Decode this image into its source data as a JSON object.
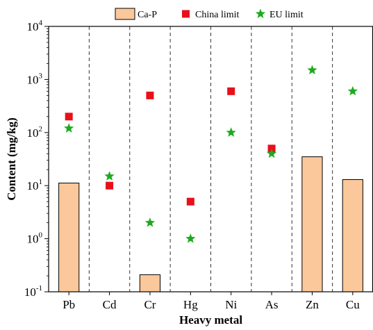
{
  "chart_data": {
    "type": "bar",
    "xlabel": "Heavy metal",
    "ylabel": "Content (mg/kg)",
    "yscale": "log",
    "ylim": [
      0.1,
      10000
    ],
    "grid": false,
    "legend_position": "top-center",
    "categories": [
      "Pb",
      "Cd",
      "Cr",
      "Hg",
      "Ni",
      "As",
      "Zn",
      "Cu"
    ],
    "y_ticks": [
      {
        "value": 0.1,
        "base": "10",
        "exp": "-1"
      },
      {
        "value": 1,
        "base": "10",
        "exp": "0"
      },
      {
        "value": 10,
        "base": "10",
        "exp": "1"
      },
      {
        "value": 100,
        "base": "10",
        "exp": "2"
      },
      {
        "value": 1000,
        "base": "10",
        "exp": "3"
      },
      {
        "value": 10000,
        "base": "10",
        "exp": "4"
      }
    ],
    "series": [
      {
        "name": "Ca-P",
        "kind": "bar",
        "color": "#FAC89B",
        "edge_color": "#000000",
        "values": [
          11.2,
          null,
          0.21,
          null,
          null,
          null,
          35,
          13
        ]
      },
      {
        "name": "China limit",
        "kind": "square-marker",
        "color": "#E8101A",
        "values": [
          200,
          10,
          500,
          5,
          600,
          50,
          null,
          null
        ]
      },
      {
        "name": "EU limit",
        "kind": "star-marker",
        "color": "#1EAA1E",
        "values": [
          120,
          15,
          2,
          1,
          100,
          40,
          1500,
          600
        ]
      }
    ]
  }
}
